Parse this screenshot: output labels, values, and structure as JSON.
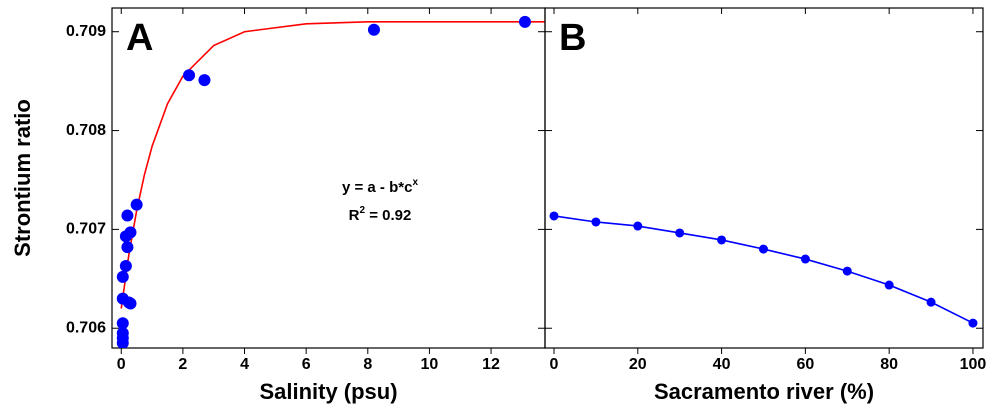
{
  "chart_data": [
    {
      "type": "scatter",
      "panel_label": "A",
      "xlabel": "Salinity (psu)",
      "ylabel": "Strontium ratio",
      "xlim": [
        -0.3,
        13.75
      ],
      "xticks": [
        0,
        2,
        4,
        6,
        8,
        10,
        12
      ],
      "ylim": [
        0.7058,
        0.70924
      ],
      "yticks": [
        0.706,
        0.707,
        0.708,
        0.709
      ],
      "ytick_labels": true,
      "series": [
        {
          "type": "scatter",
          "color": "#0000ff",
          "x": [
            0.05,
            0.05,
            0.05,
            0.05,
            0.05,
            0.05,
            0.15,
            0.2,
            0.15,
            0.2,
            0.3,
            0.25,
            0.3,
            0.5,
            2.2,
            2.7,
            8.2,
            13.1
          ],
          "values": [
            0.70585,
            0.7059,
            0.70595,
            0.70605,
            0.7063,
            0.70652,
            0.70663,
            0.70682,
            0.70693,
            0.70714,
            0.70697,
            0.70626,
            0.70625,
            0.70725,
            0.70856,
            0.70851,
            0.70902,
            0.7091
          ]
        },
        {
          "type": "line",
          "color": "#ff0000",
          "x": [
            0,
            0.25,
            0.5,
            0.75,
            1,
            1.5,
            2,
            3,
            4,
            6,
            8,
            10,
            13.75
          ],
          "values": [
            0.7062,
            0.70675,
            0.70719,
            0.70755,
            0.70784,
            0.70827,
            0.70855,
            0.70886,
            0.709,
            0.70908,
            0.7091,
            0.7091,
            0.7091
          ]
        }
      ],
      "annotations": [
        {
          "text": "y = a - b*c",
          "sup": "x"
        },
        {
          "text": "R",
          "sup": "2",
          "tail": " = 0.92"
        }
      ]
    },
    {
      "type": "line",
      "panel_label": "B",
      "xlabel": "Sacramento river (%)",
      "xlim": [
        -2.15,
        102.4
      ],
      "xticks": [
        0,
        20,
        40,
        60,
        80,
        100
      ],
      "ylim": [
        0.7058,
        0.70924
      ],
      "yticks": [
        0.706,
        0.707,
        0.708,
        0.709
      ],
      "ytick_labels": false,
      "series": [
        {
          "type": "line",
          "markers": true,
          "color": "#0000ff",
          "x": [
            0,
            10,
            20,
            30,
            40,
            50,
            60,
            70,
            80,
            90,
            100
          ],
          "values": [
            0.707136,
            0.707075,
            0.707034,
            0.706964,
            0.706893,
            0.706801,
            0.7067,
            0.706578,
            0.706437,
            0.706264,
            0.706052
          ]
        }
      ]
    }
  ]
}
